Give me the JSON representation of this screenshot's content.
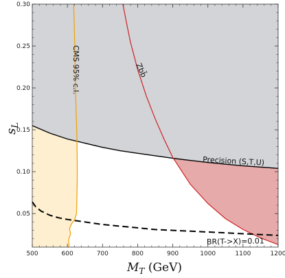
{
  "chart_data": {
    "type": "line",
    "title": "",
    "xlabel_main": "M",
    "xlabel_sub": "T",
    "xlabel_unit": " (GeV)",
    "ylabel_main": "s",
    "ylabel_sub": "L",
    "xlim": [
      500,
      1200
    ],
    "ylim": [
      0.01,
      0.3
    ],
    "x_ticks": [
      500,
      600,
      700,
      800,
      900,
      1000,
      1100,
      1200
    ],
    "y_ticks": [
      0.05,
      0.1,
      0.15,
      0.2,
      0.25,
      0.3
    ],
    "y_tick_labels": [
      "0.05",
      "0.10",
      "0.15",
      "0.20",
      "0.25",
      "0.30"
    ],
    "colors": {
      "precision_fill": "#d3d4d8",
      "cms_fill": "#fdefcf",
      "zbb_fill": "#e7aaaa",
      "cms_line": "#f0a000",
      "zbb_line": "#cc2222",
      "precision_line": "#000000",
      "br_line": "#000000"
    },
    "series": [
      {
        "name": "Precision (S,T,U)",
        "style": "solid",
        "x": [
          500,
          550,
          600,
          650,
          700,
          750,
          800,
          850,
          900,
          950,
          1000,
          1050,
          1100,
          1150,
          1200
        ],
        "y": [
          0.155,
          0.146,
          0.139,
          0.134,
          0.129,
          0.125,
          0.122,
          0.119,
          0.116,
          0.1135,
          0.111,
          0.109,
          0.107,
          0.1055,
          0.104
        ]
      },
      {
        "name": "Zbb̄",
        "style": "solid",
        "x": [
          758,
          770,
          780,
          800,
          825,
          850,
          875,
          900,
          950,
          1000,
          1050,
          1100,
          1150,
          1200
        ],
        "y": [
          0.3,
          0.274,
          0.254,
          0.222,
          0.19,
          0.163,
          0.139,
          0.117,
          0.085,
          0.062,
          0.044,
          0.031,
          0.021,
          0.013
        ]
      },
      {
        "name": "CMS 95% c.l.",
        "style": "solid",
        "x": [
          618,
          621,
          623,
          625,
          627,
          628,
          628,
          627,
          626,
          620,
          612,
          606,
          609,
          606,
          603,
          605,
          603
        ],
        "y": [
          0.3,
          0.25,
          0.2,
          0.17,
          0.14,
          0.11,
          0.09,
          0.07,
          0.05,
          0.042,
          0.038,
          0.032,
          0.026,
          0.022,
          0.018,
          0.013,
          0.01
        ]
      },
      {
        "name": "BR(T->X)=0.01",
        "style": "dashed",
        "x": [
          500,
          510,
          525,
          550,
          575,
          600,
          650,
          700,
          750,
          800,
          850,
          900,
          950,
          1000,
          1050,
          1100,
          1150,
          1200
        ],
        "y": [
          0.064,
          0.058,
          0.053,
          0.048,
          0.045,
          0.043,
          0.04,
          0.037,
          0.035,
          0.033,
          0.031,
          0.03,
          0.029,
          0.028,
          0.027,
          0.026,
          0.025,
          0.024
        ]
      }
    ],
    "annotations": {
      "cms": "CMS 95% c.l.",
      "zbb": "Zbb̄",
      "precision": "Precision (S,T,U)",
      "br": "BR(T->X)=0.01"
    }
  }
}
